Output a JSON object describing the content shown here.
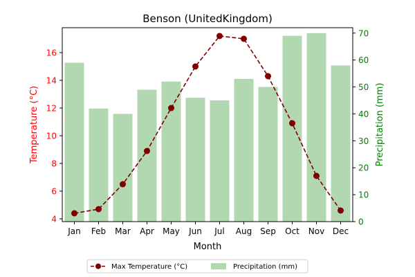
{
  "chart_data": {
    "type": "bar+line",
    "title": "Benson (UnitedKingdom)",
    "xlabel": "Month",
    "categories": [
      "Jan",
      "Feb",
      "Mar",
      "Apr",
      "May",
      "Jun",
      "Jul",
      "Aug",
      "Sep",
      "Oct",
      "Nov",
      "Dec"
    ],
    "left_axis": {
      "label": "Temperature (°C)",
      "color": "#ff0000",
      "range": [
        3.8,
        17.8
      ],
      "ticks": [
        4,
        6,
        8,
        10,
        12,
        14,
        16
      ]
    },
    "right_axis": {
      "label": "Precipitation (mm)",
      "color": "#008000",
      "range": [
        0,
        72
      ],
      "ticks": [
        0,
        10,
        20,
        30,
        40,
        50,
        60,
        70
      ]
    },
    "series": [
      {
        "name": "Max Temperature (°C)",
        "kind": "line",
        "axis": "left",
        "color": "#800000",
        "linestyle": "dashed",
        "marker": "circle",
        "values": [
          4.4,
          4.7,
          6.5,
          8.9,
          12.0,
          15.0,
          17.2,
          17.0,
          14.3,
          10.9,
          7.1,
          4.6
        ]
      },
      {
        "name": "Precipitation (mm)",
        "kind": "bar",
        "axis": "right",
        "color": "#b2d8b2",
        "values": [
          59,
          42,
          40,
          49,
          52,
          46,
          45,
          53,
          50,
          69,
          70,
          58
        ]
      }
    ],
    "legend": {
      "placement": "bottom-center",
      "entries": [
        "Max Temperature (°C)",
        "Precipitation (mm)"
      ]
    }
  }
}
